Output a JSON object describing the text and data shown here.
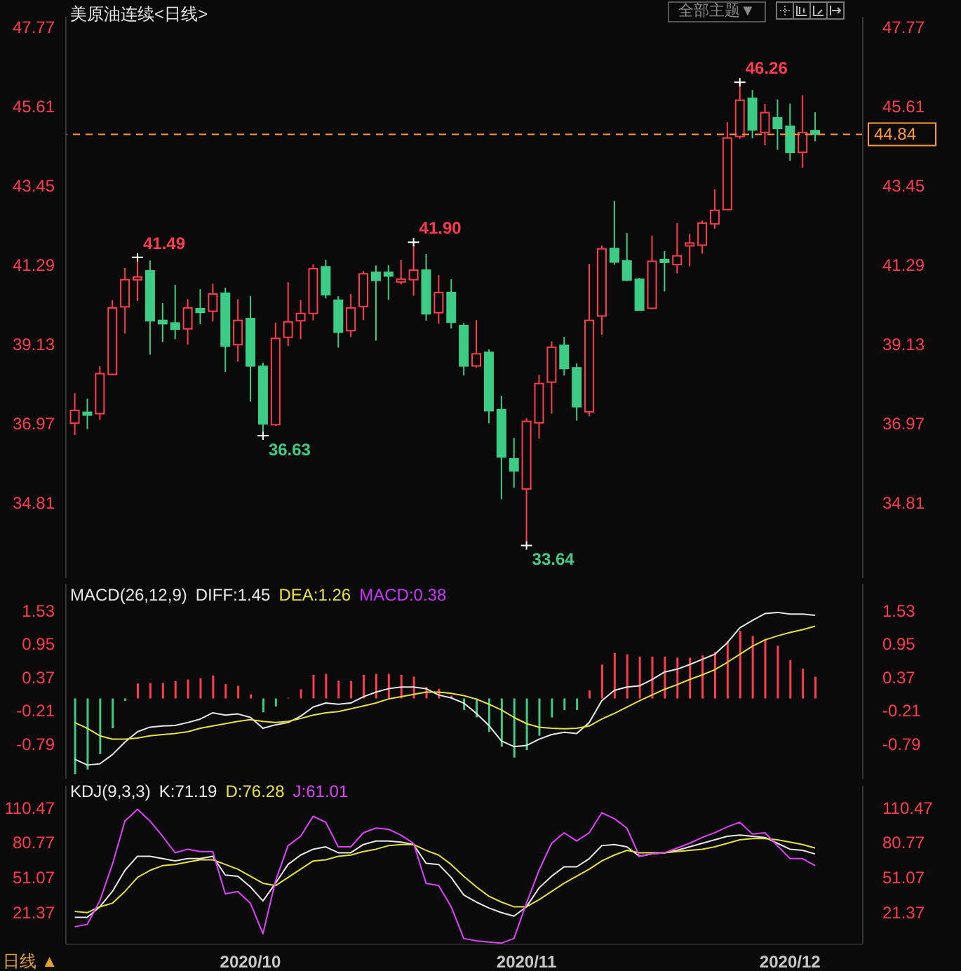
{
  "chart_data": [
    {
      "type": "candlestick",
      "title": "美原油连续<日线>",
      "categories": [
        null,
        null,
        null,
        null,
        null,
        null,
        null,
        null,
        null,
        null,
        null,
        null,
        null,
        null,
        "2020/10",
        null,
        null,
        null,
        null,
        null,
        null,
        null,
        null,
        null,
        null,
        null,
        null,
        null,
        null,
        null,
        null,
        null,
        null,
        null,
        null,
        null,
        "2020/11",
        null,
        null,
        null,
        null,
        null,
        null,
        null,
        null,
        null,
        null,
        null,
        null,
        null,
        null,
        null,
        null,
        null,
        null,
        null,
        null,
        "2020/12",
        null,
        null
      ],
      "ohlc": [
        [
          36.97,
          37.79,
          36.65,
          37.32
        ],
        [
          37.26,
          37.64,
          36.81,
          37.2
        ],
        [
          37.23,
          38.52,
          37.06,
          38.32
        ],
        [
          38.3,
          40.32,
          38.28,
          40.11
        ],
        [
          40.14,
          41.2,
          39.41,
          40.88
        ],
        [
          40.9,
          41.49,
          40.3,
          40.93
        ],
        [
          41.12,
          41.4,
          38.84,
          39.76
        ],
        [
          39.77,
          40.24,
          39.18,
          39.68
        ],
        [
          39.7,
          40.74,
          39.26,
          39.53
        ],
        [
          39.54,
          40.35,
          39.11,
          40.11
        ],
        [
          40.09,
          40.62,
          39.67,
          39.99
        ],
        [
          40.02,
          40.77,
          39.74,
          40.49
        ],
        [
          40.51,
          40.66,
          38.37,
          39.07
        ],
        [
          39.11,
          40.35,
          38.65,
          39.77
        ],
        [
          39.82,
          40.43,
          37.56,
          38.53
        ],
        [
          38.52,
          38.62,
          36.63,
          36.95
        ],
        [
          36.93,
          39.71,
          36.9,
          39.28
        ],
        [
          39.31,
          40.81,
          39.07,
          39.73
        ],
        [
          39.76,
          40.32,
          39.26,
          39.96
        ],
        [
          39.96,
          41.3,
          39.77,
          41.18
        ],
        [
          41.23,
          41.42,
          40.37,
          40.47
        ],
        [
          40.32,
          40.43,
          39.03,
          39.45
        ],
        [
          39.49,
          40.49,
          39.32,
          40.11
        ],
        [
          40.15,
          41.11,
          39.78,
          41.04
        ],
        [
          41.08,
          41.27,
          39.22,
          40.86
        ],
        [
          41.08,
          41.27,
          40.33,
          40.98
        ],
        [
          40.83,
          41.42,
          40.75,
          40.88
        ],
        [
          40.88,
          41.9,
          40.44,
          41.14
        ],
        [
          41.14,
          41.58,
          39.76,
          39.95
        ],
        [
          39.98,
          41.0,
          39.68,
          40.53
        ],
        [
          40.53,
          40.89,
          39.55,
          39.72
        ],
        [
          39.63,
          39.7,
          38.27,
          38.53
        ],
        [
          38.53,
          39.78,
          38.48,
          38.86
        ],
        [
          38.9,
          38.98,
          36.97,
          37.31
        ],
        [
          37.34,
          37.72,
          34.9,
          36.05
        ],
        [
          36.0,
          36.57,
          35.21,
          35.67
        ],
        [
          35.18,
          37.11,
          33.64,
          37.02
        ],
        [
          36.98,
          38.29,
          36.55,
          38.05
        ],
        [
          38.09,
          39.2,
          37.23,
          39.04
        ],
        [
          39.09,
          39.32,
          38.27,
          38.46
        ],
        [
          38.48,
          38.6,
          37.04,
          37.42
        ],
        [
          37.28,
          41.31,
          37.16,
          39.77
        ],
        [
          39.89,
          41.81,
          39.38,
          41.72
        ],
        [
          41.73,
          43.03,
          41.29,
          41.36
        ],
        [
          41.39,
          42.15,
          40.84,
          40.87
        ],
        [
          40.89,
          40.93,
          40.03,
          40.05
        ],
        [
          40.1,
          42.08,
          40.08,
          41.38
        ],
        [
          41.4,
          41.66,
          40.56,
          41.38
        ],
        [
          41.29,
          42.42,
          41.05,
          41.53
        ],
        [
          41.83,
          42.12,
          41.24,
          41.85
        ],
        [
          41.82,
          42.49,
          41.59,
          42.42
        ],
        [
          42.4,
          43.34,
          42.27,
          42.77
        ],
        [
          42.79,
          45.17,
          42.77,
          44.74
        ],
        [
          44.78,
          46.26,
          44.72,
          45.77
        ],
        [
          45.82,
          46.05,
          44.73,
          44.96
        ],
        [
          44.89,
          45.67,
          44.54,
          45.43
        ],
        [
          45.29,
          45.79,
          44.42,
          45.0
        ],
        [
          45.06,
          45.68,
          44.12,
          44.35
        ],
        [
          44.35,
          45.9,
          43.93,
          44.89
        ],
        [
          44.94,
          45.44,
          44.65,
          44.84
        ]
      ],
      "ylim": [
        32.75,
        48.04
      ],
      "yticks": [
        47.77,
        45.61,
        43.45,
        41.29,
        39.13,
        36.97,
        34.81
      ],
      "y2lim": [
        32.75,
        48.04
      ],
      "y2ticks": [
        47.77,
        45.61,
        43.45,
        41.29,
        39.13,
        36.97,
        34.81
      ],
      "tick_labels": "y",
      "ref_lines": [
        {
          "axis": "y2",
          "value": 44.84,
          "label": "44.84",
          "color": "#ff9933",
          "line_style": "dashed"
        }
      ],
      "annotations": [
        "41.49",
        "41.90",
        "36.63",
        "33.64",
        "46.26",
        "全部主题▼",
        "日线 ▲"
      ]
    },
    {
      "type": "line",
      "title": "MACD(26,12,9)",
      "legend": "top left",
      "categories": [
        null,
        null,
        null,
        null,
        null,
        null,
        null,
        null,
        null,
        null,
        null,
        null,
        null,
        null,
        "2020/10",
        null,
        null,
        null,
        null,
        null,
        null,
        null,
        null,
        null,
        null,
        null,
        null,
        null,
        null,
        null,
        null,
        null,
        null,
        null,
        null,
        null,
        "2020/11",
        null,
        null,
        null,
        null,
        null,
        null,
        null,
        null,
        null,
        null,
        null,
        null,
        null,
        null,
        null,
        null,
        null,
        null,
        null,
        null,
        "2020/12",
        null,
        null
      ],
      "series": [
        {
          "name": "DIFF:1.45",
          "color": "#e8e8e8",
          "values": [
            -1.06,
            -1.16,
            -1.14,
            -0.98,
            -0.76,
            -0.58,
            -0.5,
            -0.48,
            -0.47,
            -0.42,
            -0.36,
            -0.25,
            -0.29,
            -0.27,
            -0.33,
            -0.52,
            -0.46,
            -0.42,
            -0.31,
            -0.15,
            -0.08,
            -0.1,
            -0.08,
            0.03,
            0.11,
            0.17,
            0.2,
            0.2,
            0.17,
            0.06,
            0.01,
            -0.08,
            -0.26,
            -0.47,
            -0.74,
            -0.84,
            -0.82,
            -0.71,
            -0.63,
            -0.59,
            -0.61,
            -0.42,
            -0.04,
            0.14,
            0.2,
            0.22,
            0.33,
            0.46,
            0.51,
            0.59,
            0.68,
            0.77,
            0.97,
            1.23,
            1.36,
            1.48,
            1.5,
            1.47,
            1.47,
            1.45
          ]
        },
        {
          "name": "DEA:1.26",
          "color": "#e6e236",
          "values": [
            -0.42,
            -0.52,
            -0.65,
            -0.71,
            -0.71,
            -0.69,
            -0.65,
            -0.63,
            -0.61,
            -0.58,
            -0.52,
            -0.48,
            -0.44,
            -0.4,
            -0.37,
            -0.4,
            -0.42,
            -0.4,
            -0.35,
            -0.29,
            -0.25,
            -0.23,
            -0.18,
            -0.13,
            -0.08,
            -0.01,
            0.03,
            0.07,
            0.11,
            0.11,
            0.09,
            0.05,
            -0.01,
            -0.1,
            -0.2,
            -0.33,
            -0.44,
            -0.5,
            -0.52,
            -0.53,
            -0.52,
            -0.48,
            -0.36,
            -0.26,
            -0.15,
            -0.04,
            0.06,
            0.16,
            0.24,
            0.33,
            0.41,
            0.5,
            0.63,
            0.77,
            0.91,
            1.02,
            1.09,
            1.15,
            1.2,
            1.26
          ]
        },
        {
          "type": "bar",
          "color": "#cc33ff",
          "values": [
            -1.32,
            -1.24,
            -0.97,
            -0.52,
            -0.04,
            0.26,
            0.27,
            0.27,
            0.3,
            0.33,
            0.35,
            0.4,
            0.25,
            0.22,
            0.07,
            -0.24,
            -0.14,
            0.01,
            0.16,
            0.41,
            0.43,
            0.31,
            0.3,
            0.41,
            0.43,
            0.43,
            0.41,
            0.38,
            0.2,
            0.17,
            0.05,
            -0.2,
            -0.33,
            -0.58,
            -0.84,
            -1.03,
            -0.9,
            -0.65,
            -0.33,
            -0.2,
            -0.2,
            0.14,
            0.59,
            0.79,
            0.77,
            0.73,
            0.73,
            0.73,
            0.71,
            0.71,
            0.75,
            0.81,
            1.0,
            1.18,
            1.09,
            1.04,
            0.92,
            0.67,
            0.52,
            0.38
          ],
          "colors": [
            "#3dcc85",
            "#3dcc85",
            "#3dcc85",
            "#3dcc85",
            "#3dcc85",
            "#ff3b4e",
            "#ff3b4e",
            "#ff3b4e",
            "#ff3b4e",
            "#ff3b4e",
            "#ff3b4e",
            "#ff3b4e",
            "#ff3b4e",
            "#ff3b4e",
            "#ff3b4e",
            "#3dcc85",
            "#3dcc85",
            "#ff3b4e",
            "#ff3b4e",
            "#ff3b4e",
            "#ff3b4e",
            "#ff3b4e",
            "#ff3b4e",
            "#ff3b4e",
            "#ff3b4e",
            "#ff3b4e",
            "#ff3b4e",
            "#ff3b4e",
            "#ff3b4e",
            "#ff3b4e",
            "#ff3b4e",
            "#3dcc85",
            "#3dcc85",
            "#3dcc85",
            "#3dcc85",
            "#3dcc85",
            "#3dcc85",
            "#3dcc85",
            "#3dcc85",
            "#3dcc85",
            "#3dcc85",
            "#ff3b4e",
            "#ff3b4e",
            "#ff3b4e",
            "#ff3b4e",
            "#ff3b4e",
            "#ff3b4e",
            "#ff3b4e",
            "#ff3b4e",
            "#ff3b4e",
            "#ff3b4e",
            "#ff3b4e",
            "#ff3b4e",
            "#ff3b4e",
            "#ff3b4e",
            "#ff3b4e",
            "#ff3b4e",
            "#ff3b4e",
            "#ff3b4e",
            "#ff3b4e"
          ]
        }
      ],
      "ylim": [
        -1.4,
        2.0
      ],
      "yticks": [
        1.53,
        0.95,
        0.37,
        -0.21,
        -0.79
      ],
      "y2lim": [
        -1.4,
        2.0
      ],
      "y2ticks": [
        1.53,
        0.95,
        0.37,
        -0.21,
        -0.79
      ],
      "annotations": [
        "MACD:0.38"
      ],
      "tick_labels": "y"
    },
    {
      "type": "line",
      "title": "KDJ(9,3,3)",
      "legend": "top left",
      "categories": [
        null,
        null,
        null,
        null,
        null,
        null,
        null,
        null,
        null,
        null,
        null,
        null,
        null,
        null,
        "2020/10",
        null,
        null,
        null,
        null,
        null,
        null,
        null,
        null,
        null,
        null,
        null,
        null,
        null,
        null,
        null,
        null,
        null,
        null,
        null,
        null,
        null,
        "2020/11",
        null,
        null,
        null,
        null,
        null,
        null,
        null,
        null,
        null,
        null,
        null,
        null,
        null,
        null,
        null,
        null,
        null,
        null,
        null,
        null,
        "2020/12",
        null,
        null
      ],
      "series": [
        {
          "name": "K:71.19",
          "color": "#e8e8e8",
          "values": [
            17,
            17,
            26,
            39,
            57,
            69,
            69,
            67,
            65,
            67,
            67,
            69,
            53,
            52,
            43,
            31,
            46,
            62,
            70,
            75,
            77,
            72,
            72,
            79,
            82,
            82,
            81,
            79,
            63,
            62,
            51,
            36,
            30,
            25,
            21,
            18,
            26,
            42,
            52,
            60,
            60,
            67,
            78,
            79,
            77,
            69,
            71,
            72,
            74,
            77,
            80,
            83,
            86,
            87,
            86,
            85,
            80,
            75,
            74,
            71
          ]
        },
        {
          "name": "D:76.28",
          "color": "#e6e236",
          "values": [
            22,
            21,
            26,
            29,
            39,
            51,
            57,
            61,
            62,
            64,
            66,
            66,
            62,
            58,
            52,
            46,
            44,
            51,
            58,
            65,
            66,
            69,
            70,
            73,
            75,
            78,
            79,
            79,
            74,
            70,
            62,
            52,
            43,
            35,
            30,
            26,
            26,
            32,
            39,
            46,
            52,
            58,
            65,
            70,
            74,
            72,
            72,
            72,
            73,
            74,
            75,
            77,
            80,
            83,
            84,
            84,
            83,
            81,
            79,
            76
          ]
        },
        {
          "name": "J:61.01",
          "color": "#e040fb",
          "values": [
            9,
            11,
            31,
            62,
            99,
            109,
            99,
            86,
            72,
            75,
            73,
            73,
            37,
            39,
            29,
            3,
            48,
            78,
            86,
            103,
            98,
            77,
            77,
            89,
            93,
            92,
            87,
            80,
            46,
            44,
            26,
            -1,
            -3,
            -4,
            -5,
            -1,
            29,
            57,
            80,
            89,
            82,
            89,
            106,
            101,
            93,
            69,
            71,
            72,
            76,
            80,
            85,
            89,
            94,
            98,
            88,
            89,
            78,
            67,
            67,
            61
          ]
        }
      ],
      "ylim": [
        -6,
        129
      ],
      "yticks": [
        110.47,
        80.77,
        51.07,
        21.37
      ],
      "y2lim": [
        -6,
        129
      ],
      "y2ticks": [
        110.47,
        80.77,
        51.07,
        21.37
      ]
    }
  ]
}
